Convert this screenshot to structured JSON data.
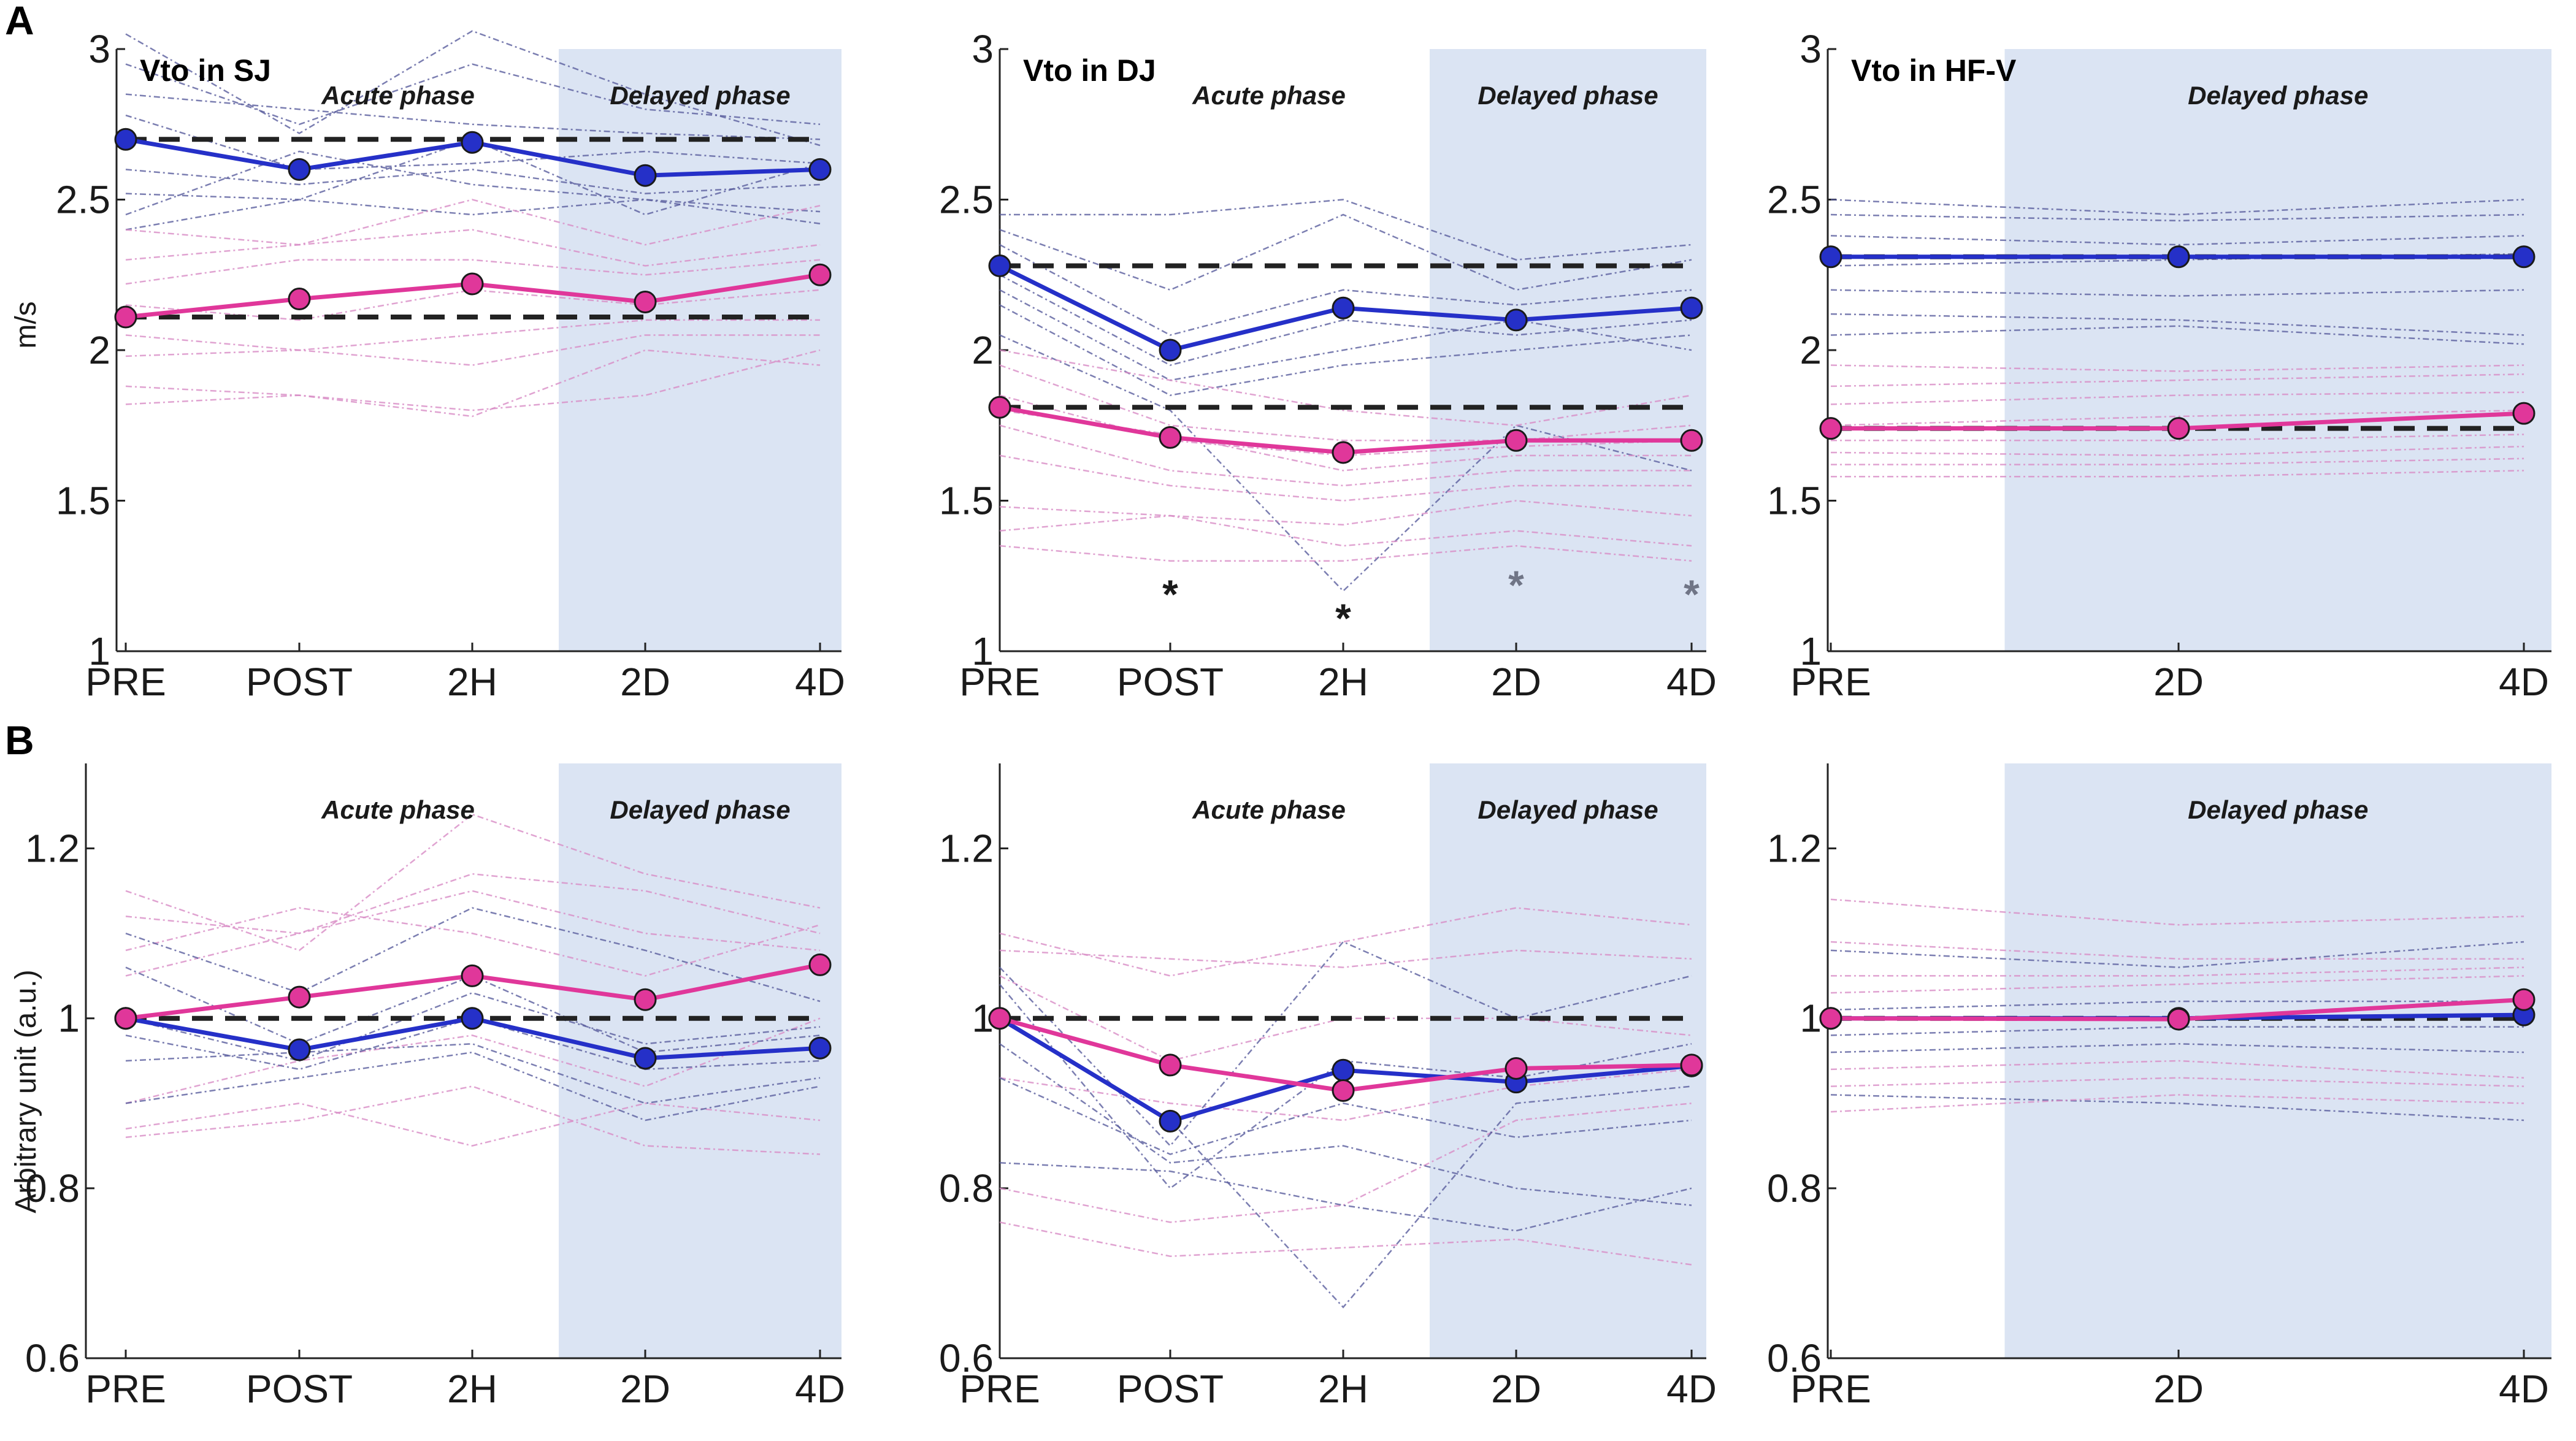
{
  "figure": {
    "row_labels": [
      "A",
      "B"
    ],
    "ylabels": [
      "m/s",
      "Arbitrary unit (a.u.)"
    ],
    "phase_labels": {
      "acute": "Acute phase",
      "delayed": "Delayed phase"
    },
    "colors": {
      "blue": "#2530c8",
      "pink": "#e0379a",
      "shade": "#dbe4f3",
      "indiv_blue": "#5a5e9e",
      "indiv_pink": "#d88cc6"
    }
  },
  "chart_data": [
    {
      "id": "A1",
      "type": "line",
      "title": "Vto in SJ",
      "categories": [
        "PRE",
        "POST",
        "2H",
        "2D",
        "4D"
      ],
      "ylim": [
        1,
        3
      ],
      "yticks": [
        1,
        1.5,
        2,
        2.5,
        3
      ],
      "ylabel": "m/s",
      "acute_label": true,
      "delayed_label": true,
      "delayed_from": 3,
      "series": [
        {
          "name": "blue mean",
          "color": "blue",
          "values": [
            2.7,
            2.6,
            2.69,
            2.58,
            2.6
          ]
        },
        {
          "name": "pink mean",
          "color": "pink",
          "values": [
            2.11,
            2.17,
            2.22,
            2.16,
            2.25
          ]
        }
      ],
      "baselines": [
        2.7,
        2.11
      ],
      "individuals": [
        {
          "c": "b",
          "v": [
            3.05,
            2.72,
            3.06,
            2.85,
            2.68
          ]
        },
        {
          "c": "b",
          "v": [
            2.95,
            2.75,
            2.95,
            2.8,
            2.75
          ]
        },
        {
          "c": "b",
          "v": [
            2.85,
            2.8,
            2.75,
            2.72,
            2.7
          ]
        },
        {
          "c": "b",
          "v": [
            2.78,
            2.6,
            2.62,
            2.66,
            2.62
          ]
        },
        {
          "c": "b",
          "v": [
            2.6,
            2.55,
            2.6,
            2.52,
            2.55
          ]
        },
        {
          "c": "b",
          "v": [
            2.52,
            2.5,
            2.45,
            2.5,
            2.42
          ]
        },
        {
          "c": "b",
          "v": [
            2.45,
            2.66,
            2.55,
            2.5,
            2.46
          ]
        },
        {
          "c": "b",
          "v": [
            2.4,
            2.5,
            2.7,
            2.45,
            2.62
          ]
        },
        {
          "c": "p",
          "v": [
            2.4,
            2.35,
            2.5,
            2.35,
            2.48
          ]
        },
        {
          "c": "p",
          "v": [
            2.3,
            2.35,
            2.4,
            2.28,
            2.35
          ]
        },
        {
          "c": "p",
          "v": [
            2.22,
            2.3,
            2.3,
            2.25,
            2.3
          ]
        },
        {
          "c": "p",
          "v": [
            2.15,
            2.1,
            2.2,
            2.15,
            2.2
          ]
        },
        {
          "c": "p",
          "v": [
            2.05,
            2.0,
            2.05,
            2.1,
            2.1
          ]
        },
        {
          "c": "p",
          "v": [
            1.98,
            2.0,
            1.95,
            2.05,
            2.05
          ]
        },
        {
          "c": "p",
          "v": [
            1.88,
            1.85,
            1.8,
            1.85,
            2.0
          ]
        },
        {
          "c": "p",
          "v": [
            1.82,
            1.85,
            1.78,
            2.0,
            1.95
          ]
        }
      ],
      "stars": []
    },
    {
      "id": "A2",
      "type": "line",
      "title": "Vto in DJ",
      "categories": [
        "PRE",
        "POST",
        "2H",
        "2D",
        "4D"
      ],
      "ylim": [
        1,
        3
      ],
      "yticks": [
        1,
        1.5,
        2,
        2.5,
        3
      ],
      "ylabel": "",
      "acute_label": true,
      "delayed_label": true,
      "delayed_from": 3,
      "series": [
        {
          "name": "blue mean",
          "color": "blue",
          "values": [
            2.28,
            2.0,
            2.14,
            2.1,
            2.14
          ]
        },
        {
          "name": "pink mean",
          "color": "pink",
          "values": [
            1.81,
            1.71,
            1.66,
            1.7,
            1.7
          ]
        }
      ],
      "baselines": [
        2.28,
        1.81
      ],
      "individuals": [
        {
          "c": "b",
          "v": [
            2.45,
            2.45,
            2.5,
            2.3,
            2.35
          ]
        },
        {
          "c": "b",
          "v": [
            2.4,
            2.2,
            2.45,
            2.2,
            2.3
          ]
        },
        {
          "c": "b",
          "v": [
            2.35,
            2.05,
            2.2,
            2.15,
            2.2
          ]
        },
        {
          "c": "b",
          "v": [
            2.25,
            1.95,
            2.1,
            2.05,
            2.1
          ]
        },
        {
          "c": "b",
          "v": [
            2.2,
            1.9,
            2.0,
            2.1,
            2.0
          ]
        },
        {
          "c": "b",
          "v": [
            2.15,
            1.85,
            1.95,
            2.0,
            2.05
          ]
        },
        {
          "c": "b",
          "v": [
            2.05,
            1.8,
            1.2,
            1.75,
            1.6
          ]
        },
        {
          "c": "p",
          "v": [
            2.0,
            1.9,
            1.8,
            1.75,
            1.85
          ]
        },
        {
          "c": "p",
          "v": [
            1.95,
            1.75,
            1.7,
            1.7,
            1.75
          ]
        },
        {
          "c": "p",
          "v": [
            1.85,
            1.7,
            1.65,
            1.68,
            1.7
          ]
        },
        {
          "c": "p",
          "v": [
            1.8,
            1.72,
            1.6,
            1.65,
            1.65
          ]
        },
        {
          "c": "p",
          "v": [
            1.75,
            1.6,
            1.55,
            1.6,
            1.6
          ]
        },
        {
          "c": "p",
          "v": [
            1.65,
            1.55,
            1.5,
            1.55,
            1.55
          ]
        },
        {
          "c": "p",
          "v": [
            1.48,
            1.45,
            1.42,
            1.5,
            1.45
          ]
        },
        {
          "c": "p",
          "v": [
            1.4,
            1.45,
            1.35,
            1.4,
            1.35
          ]
        },
        {
          "c": "p",
          "v": [
            1.35,
            1.3,
            1.3,
            1.35,
            1.3
          ]
        }
      ],
      "stars": [
        {
          "x": 1,
          "y": 1.2,
          "label": "*",
          "color": "#1a1a1a"
        },
        {
          "x": 2,
          "y": 1.12,
          "label": "*",
          "color": "#1a1a1a"
        },
        {
          "x": 3,
          "y": 1.23,
          "label": "*",
          "color": "#707586"
        },
        {
          "x": 4,
          "y": 1.2,
          "label": "*",
          "color": "#707586"
        }
      ]
    },
    {
      "id": "A3",
      "type": "line",
      "title": "Vto in HF-V",
      "categories": [
        "PRE",
        "2D",
        "4D"
      ],
      "ylim": [
        1,
        3
      ],
      "yticks": [
        1,
        1.5,
        2,
        2.5,
        3
      ],
      "ylabel": "",
      "acute_label": false,
      "delayed_label": true,
      "delayed_from": 1,
      "series": [
        {
          "name": "blue mean",
          "color": "blue",
          "values": [
            2.31,
            2.31,
            2.31
          ]
        },
        {
          "name": "pink mean",
          "color": "pink",
          "values": [
            1.74,
            1.74,
            1.79
          ]
        }
      ],
      "baselines": [
        2.31,
        1.74
      ],
      "individuals": [
        {
          "c": "b",
          "v": [
            2.5,
            2.45,
            2.5
          ]
        },
        {
          "c": "b",
          "v": [
            2.45,
            2.43,
            2.45
          ]
        },
        {
          "c": "b",
          "v": [
            2.38,
            2.35,
            2.38
          ]
        },
        {
          "c": "b",
          "v": [
            2.28,
            2.3,
            2.32
          ]
        },
        {
          "c": "b",
          "v": [
            2.2,
            2.18,
            2.2
          ]
        },
        {
          "c": "b",
          "v": [
            2.12,
            2.1,
            2.05
          ]
        },
        {
          "c": "b",
          "v": [
            2.05,
            2.08,
            2.02
          ]
        },
        {
          "c": "p",
          "v": [
            1.95,
            1.93,
            1.95
          ]
        },
        {
          "c": "p",
          "v": [
            1.88,
            1.9,
            1.92
          ]
        },
        {
          "c": "p",
          "v": [
            1.82,
            1.85,
            1.86
          ]
        },
        {
          "c": "p",
          "v": [
            1.75,
            1.78,
            1.8
          ]
        },
        {
          "c": "p",
          "v": [
            1.7,
            1.7,
            1.72
          ]
        },
        {
          "c": "p",
          "v": [
            1.66,
            1.65,
            1.68
          ]
        },
        {
          "c": "p",
          "v": [
            1.62,
            1.62,
            1.64
          ]
        },
        {
          "c": "p",
          "v": [
            1.58,
            1.58,
            1.6
          ]
        }
      ],
      "stars": []
    },
    {
      "id": "B1",
      "type": "line",
      "title": "",
      "categories": [
        "PRE",
        "POST",
        "2H",
        "2D",
        "4D"
      ],
      "ylim": [
        0.6,
        1.3
      ],
      "yticks": [
        0.6,
        0.8,
        1,
        1.2
      ],
      "ylabel": "Arbitrary unit (a.u.)",
      "acute_label": true,
      "delayed_label": true,
      "delayed_from": 3,
      "series": [
        {
          "name": "blue mean",
          "color": "blue",
          "values": [
            1.0,
            0.963,
            1.0,
            0.953,
            0.965
          ]
        },
        {
          "name": "pink mean",
          "color": "pink",
          "values": [
            1.0,
            1.025,
            1.05,
            1.022,
            1.063
          ]
        }
      ],
      "baselines": [
        1.0
      ],
      "individuals": [
        {
          "c": "p",
          "v": [
            1.15,
            1.08,
            1.24,
            1.17,
            1.13
          ]
        },
        {
          "c": "p",
          "v": [
            1.12,
            1.1,
            1.15,
            1.1,
            1.08
          ]
        },
        {
          "c": "p",
          "v": [
            1.08,
            1.13,
            1.1,
            1.05,
            1.11
          ]
        },
        {
          "c": "p",
          "v": [
            1.05,
            1.1,
            1.17,
            1.15,
            1.1
          ]
        },
        {
          "c": "p",
          "v": [
            0.9,
            0.95,
            0.98,
            0.92,
            1.0
          ]
        },
        {
          "c": "p",
          "v": [
            0.87,
            0.9,
            0.85,
            0.9,
            0.88
          ]
        },
        {
          "c": "p",
          "v": [
            0.86,
            0.88,
            0.92,
            0.85,
            0.84
          ]
        },
        {
          "c": "b",
          "v": [
            1.1,
            1.03,
            1.13,
            1.08,
            1.02
          ]
        },
        {
          "c": "b",
          "v": [
            1.06,
            0.97,
            1.05,
            0.96,
            0.98
          ]
        },
        {
          "c": "b",
          "v": [
            1.0,
            0.95,
            1.03,
            0.97,
            0.99
          ]
        },
        {
          "c": "b",
          "v": [
            0.98,
            0.94,
            1.0,
            0.94,
            0.95
          ]
        },
        {
          "c": "b",
          "v": [
            0.95,
            0.96,
            0.97,
            0.9,
            0.93
          ]
        },
        {
          "c": "b",
          "v": [
            0.9,
            0.93,
            0.96,
            0.88,
            0.92
          ]
        }
      ],
      "stars": []
    },
    {
      "id": "B2",
      "type": "line",
      "title": "",
      "categories": [
        "PRE",
        "POST",
        "2H",
        "2D",
        "4D"
      ],
      "ylim": [
        0.6,
        1.3
      ],
      "yticks": [
        0.6,
        0.8,
        1,
        1.2
      ],
      "ylabel": "",
      "acute_label": true,
      "delayed_label": true,
      "delayed_from": 3,
      "series": [
        {
          "name": "blue mean",
          "color": "blue",
          "values": [
            1.0,
            0.879,
            0.939,
            0.925,
            0.944
          ]
        },
        {
          "name": "pink mean",
          "color": "pink",
          "values": [
            1.0,
            0.945,
            0.915,
            0.941,
            0.945
          ]
        }
      ],
      "baselines": [
        1.0
      ],
      "individuals": [
        {
          "c": "p",
          "v": [
            1.1,
            1.05,
            1.09,
            1.13,
            1.11
          ]
        },
        {
          "c": "p",
          "v": [
            1.08,
            1.07,
            1.06,
            1.08,
            1.07
          ]
        },
        {
          "c": "p",
          "v": [
            1.05,
            0.95,
            1.0,
            1.0,
            0.98
          ]
        },
        {
          "c": "p",
          "v": [
            0.93,
            0.9,
            0.88,
            0.92,
            0.94
          ]
        },
        {
          "c": "p",
          "v": [
            0.8,
            0.76,
            0.78,
            0.88,
            0.9
          ]
        },
        {
          "c": "p",
          "v": [
            0.76,
            0.72,
            0.73,
            0.74,
            0.71
          ]
        },
        {
          "c": "b",
          "v": [
            1.06,
            0.85,
            1.09,
            1.0,
            1.05
          ]
        },
        {
          "c": "b",
          "v": [
            1.04,
            0.8,
            0.95,
            0.93,
            0.97
          ]
        },
        {
          "c": "b",
          "v": [
            1.0,
            0.88,
            0.66,
            0.9,
            0.92
          ]
        },
        {
          "c": "b",
          "v": [
            0.97,
            0.83,
            0.85,
            0.8,
            0.78
          ]
        },
        {
          "c": "b",
          "v": [
            0.93,
            0.84,
            0.9,
            0.86,
            0.88
          ]
        },
        {
          "c": "b",
          "v": [
            0.83,
            0.82,
            0.78,
            0.75,
            0.8
          ]
        }
      ],
      "stars": []
    },
    {
      "id": "B3",
      "type": "line",
      "title": "",
      "categories": [
        "PRE",
        "2D",
        "4D"
      ],
      "ylim": [
        0.6,
        1.3
      ],
      "yticks": [
        0.6,
        0.8,
        1,
        1.2
      ],
      "ylabel": "",
      "acute_label": false,
      "delayed_label": true,
      "delayed_from": 1,
      "series": [
        {
          "name": "blue mean",
          "color": "blue",
          "values": [
            1.0,
            1.0,
            1.004
          ]
        },
        {
          "name": "pink mean",
          "color": "pink",
          "values": [
            1.0,
            0.999,
            1.022
          ]
        }
      ],
      "baselines": [
        1.0
      ],
      "individuals": [
        {
          "c": "p",
          "v": [
            1.14,
            1.11,
            1.12
          ]
        },
        {
          "c": "p",
          "v": [
            1.09,
            1.07,
            1.07
          ]
        },
        {
          "c": "p",
          "v": [
            1.05,
            1.05,
            1.06
          ]
        },
        {
          "c": "p",
          "v": [
            1.03,
            1.04,
            1.05
          ]
        },
        {
          "c": "b",
          "v": [
            1.08,
            1.06,
            1.09
          ]
        },
        {
          "c": "b",
          "v": [
            1.01,
            1.02,
            1.02
          ]
        },
        {
          "c": "b",
          "v": [
            0.98,
            0.99,
            0.99
          ]
        },
        {
          "c": "b",
          "v": [
            0.96,
            0.97,
            0.96
          ]
        },
        {
          "c": "p",
          "v": [
            0.94,
            0.95,
            0.93
          ]
        },
        {
          "c": "p",
          "v": [
            0.92,
            0.93,
            0.92
          ]
        },
        {
          "c": "b",
          "v": [
            0.91,
            0.9,
            0.88
          ]
        },
        {
          "c": "p",
          "v": [
            0.89,
            0.91,
            0.9
          ]
        }
      ],
      "stars": []
    }
  ]
}
